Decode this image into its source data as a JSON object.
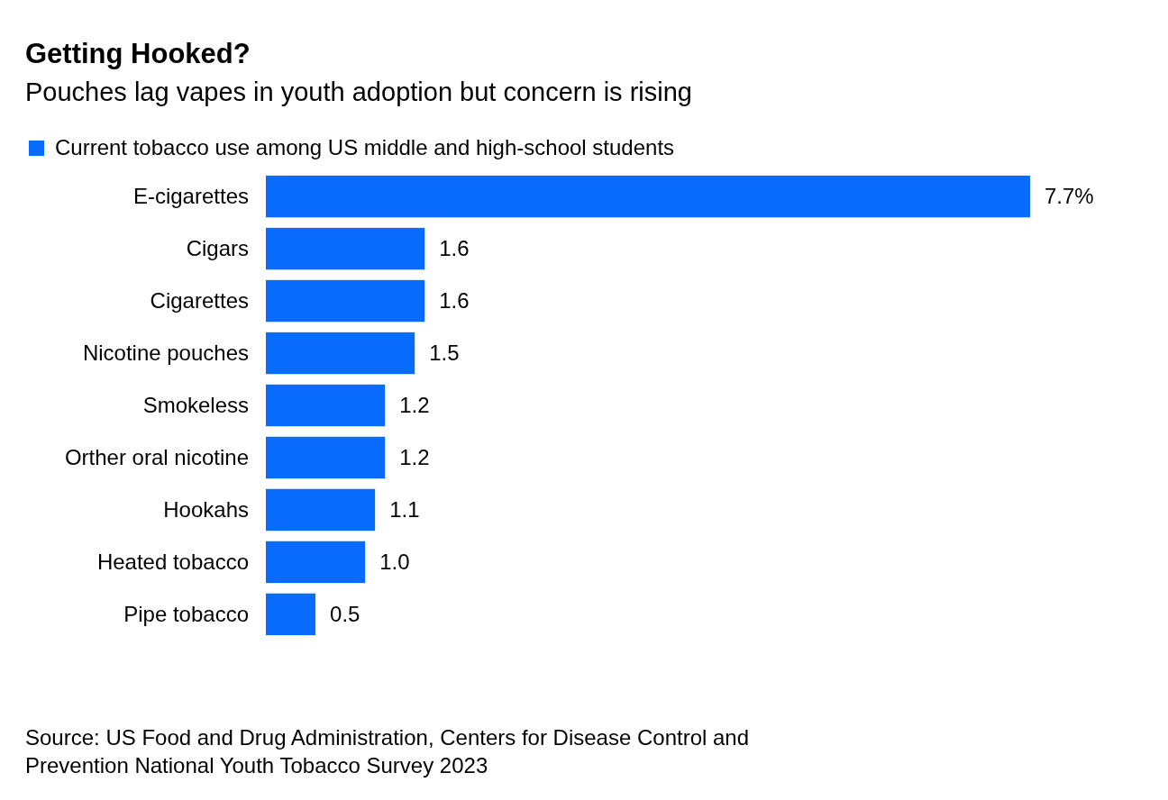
{
  "chart_data": {
    "type": "bar",
    "orientation": "horizontal",
    "title": "Getting Hooked?",
    "subtitle": "Pouches lag vapes in youth adoption but concern is rising",
    "categories": [
      "E-cigarettes",
      "Cigars",
      "Cigarettes",
      "Nicotine pouches",
      "Smokeless",
      "Orther oral nicotine",
      "Hookahs",
      "Heated tobacco",
      "Pipe tobacco"
    ],
    "series": [
      {
        "name": "Current tobacco use among US middle and high-school students",
        "color": "#0a6cff",
        "values": [
          7.7,
          1.6,
          1.6,
          1.5,
          1.2,
          1.2,
          1.1,
          1.0,
          0.5
        ],
        "value_labels": [
          "7.7%",
          "1.6",
          "1.6",
          "1.5",
          "1.2",
          "1.2",
          "1.1",
          "1.0",
          "0.5"
        ]
      }
    ],
    "legend": "top left",
    "annotations": [
      "Source: US Food and Drug Administration, Centers for Disease Control and Prevention National Youth Tobacco Survey 2023"
    ]
  }
}
